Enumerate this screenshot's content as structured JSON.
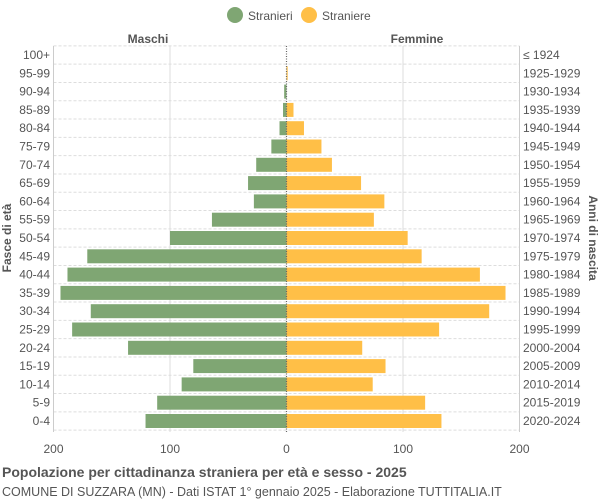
{
  "chart_data": {
    "type": "bar",
    "orientation": "horizontal-pyramid",
    "title": "Popolazione per cittadinanza straniera per età e sesso - 2025",
    "subtitle": "COMUNE DI SUZZARA (MN) - Dati ISTAT 1° gennaio 2025 - Elaborazione TUTTITALIA.IT",
    "left_header": "Maschi",
    "right_header": "Femmine",
    "ylabel_left": "Fasce di età",
    "ylabel_right": "Anni di nascita",
    "xlim": [
      -200,
      200
    ],
    "xticks": [
      "200",
      "100",
      "0",
      "100",
      "200"
    ],
    "grid": true,
    "legend_position": "top",
    "categories": [
      "100+",
      "95-99",
      "90-94",
      "85-89",
      "80-84",
      "75-79",
      "70-74",
      "65-69",
      "60-64",
      "55-59",
      "50-54",
      "45-49",
      "40-44",
      "35-39",
      "30-34",
      "25-29",
      "20-24",
      "15-19",
      "10-14",
      "5-9",
      "0-4"
    ],
    "birth_years": [
      "≤ 1924",
      "1925-1929",
      "1930-1934",
      "1935-1939",
      "1940-1944",
      "1945-1949",
      "1950-1954",
      "1955-1959",
      "1960-1964",
      "1965-1969",
      "1970-1974",
      "1975-1979",
      "1980-1984",
      "1985-1989",
      "1990-1994",
      "1995-1999",
      "2000-2004",
      "2005-2009",
      "2010-2014",
      "2015-2019",
      "2020-2024"
    ],
    "series": [
      {
        "name": "Stranieri",
        "color": "#7fa673",
        "values": [
          0,
          0,
          2,
          3,
          6,
          13,
          26,
          33,
          28,
          64,
          100,
          171,
          188,
          194,
          168,
          184,
          136,
          80,
          90,
          111,
          121
        ]
      },
      {
        "name": "Straniere",
        "color": "#ffbf47",
        "values": [
          0,
          1,
          0,
          6,
          15,
          30,
          39,
          64,
          84,
          75,
          104,
          116,
          166,
          188,
          174,
          131,
          65,
          85,
          74,
          119,
          133
        ]
      }
    ]
  }
}
